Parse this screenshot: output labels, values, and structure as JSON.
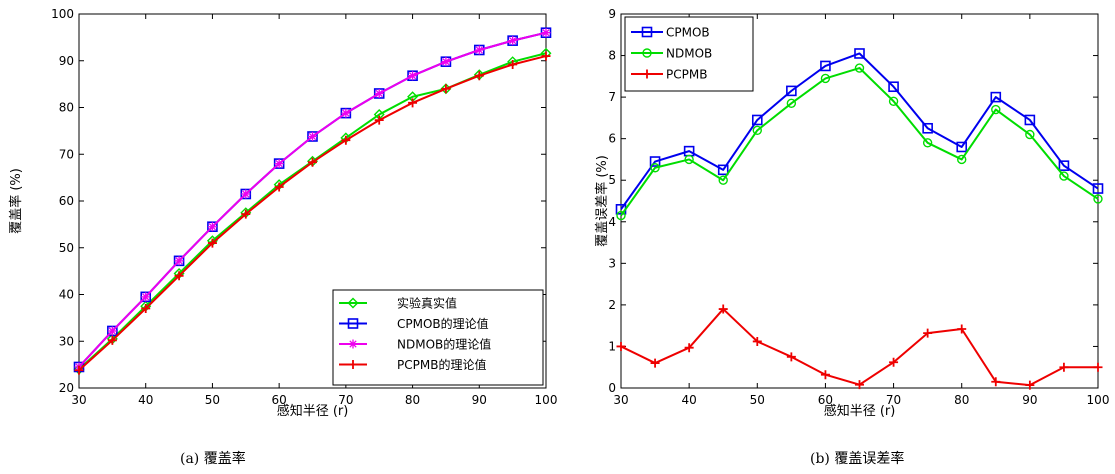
{
  "chart_data": [
    {
      "type": "line",
      "caption": "(a)  覆盖率",
      "xlabel": "感知半径 (r)",
      "ylabel": "覆盖率 (%)",
      "xlim": [
        30,
        100
      ],
      "ylim": [
        20,
        100
      ],
      "xticks": [
        "30",
        "40",
        "50",
        "60",
        "70",
        "80",
        "90",
        "100"
      ],
      "yticks": [
        "20",
        "30",
        "40",
        "50",
        "60",
        "70",
        "80",
        "90",
        "100"
      ],
      "grid": false,
      "legend_position": "bottom-right",
      "x": [
        30,
        35,
        40,
        45,
        50,
        55,
        60,
        65,
        70,
        75,
        80,
        85,
        90,
        95,
        100
      ],
      "series": [
        {
          "name": "实验真实值",
          "color": "#00dd00",
          "marker": "diamond",
          "values": [
            24.0,
            30.5,
            37.5,
            44.5,
            51.5,
            57.5,
            63.5,
            68.5,
            73.5,
            78.5,
            82.3,
            84.0,
            87.0,
            89.8,
            91.6
          ]
        },
        {
          "name": "CPMOB的理论值",
          "color": "#0000ee",
          "marker": "square",
          "values": [
            24.5,
            32.2,
            39.5,
            47.2,
            54.5,
            61.5,
            68.0,
            73.8,
            78.8,
            83.0,
            86.8,
            89.8,
            92.3,
            94.3,
            96.0
          ]
        },
        {
          "name": "NDMOB的理论值",
          "color": "#ee00ee",
          "marker": "star",
          "values": [
            24.5,
            32.2,
            39.5,
            47.2,
            54.5,
            61.5,
            68.0,
            73.8,
            78.8,
            83.0,
            86.8,
            89.8,
            92.3,
            94.3,
            96.0
          ]
        },
        {
          "name": "PCPMB的理论值",
          "color": "#ee0000",
          "marker": "plus",
          "values": [
            23.8,
            30.2,
            37.0,
            44.0,
            51.0,
            57.2,
            63.0,
            68.3,
            73.0,
            77.3,
            81.0,
            84.0,
            86.8,
            89.2,
            91.0
          ]
        }
      ]
    },
    {
      "type": "line",
      "caption": "(b)  覆盖误差率",
      "xlabel": "感知半径 (r)",
      "ylabel": "覆盖误差率 (%)",
      "xlim": [
        30,
        100
      ],
      "ylim": [
        0,
        9
      ],
      "xticks": [
        "30",
        "40",
        "50",
        "60",
        "70",
        "80",
        "90",
        "100"
      ],
      "yticks": [
        "0",
        "1",
        "2",
        "3",
        "4",
        "5",
        "6",
        "7",
        "8",
        "9"
      ],
      "grid": false,
      "legend_position": "top-left",
      "x": [
        30,
        35,
        40,
        45,
        50,
        55,
        60,
        65,
        70,
        75,
        80,
        85,
        90,
        95,
        100
      ],
      "series": [
        {
          "name": "CPMOB",
          "color": "#0000ee",
          "marker": "square",
          "values": [
            4.3,
            5.45,
            5.7,
            5.25,
            6.45,
            7.15,
            7.75,
            8.05,
            7.25,
            6.25,
            5.8,
            7.0,
            6.45,
            5.35,
            4.8
          ]
        },
        {
          "name": "NDMOB",
          "color": "#00dd00",
          "marker": "circle",
          "values": [
            4.15,
            5.3,
            5.5,
            5.0,
            6.2,
            6.85,
            7.45,
            7.7,
            6.9,
            5.9,
            5.5,
            6.7,
            6.1,
            5.1,
            4.55
          ]
        },
        {
          "name": "PCPMB",
          "color": "#ee0000",
          "marker": "plus",
          "values": [
            1.0,
            0.6,
            0.97,
            1.9,
            1.12,
            0.75,
            0.32,
            0.08,
            0.62,
            1.32,
            1.42,
            0.15,
            0.07,
            0.5,
            0.5
          ]
        }
      ]
    }
  ]
}
